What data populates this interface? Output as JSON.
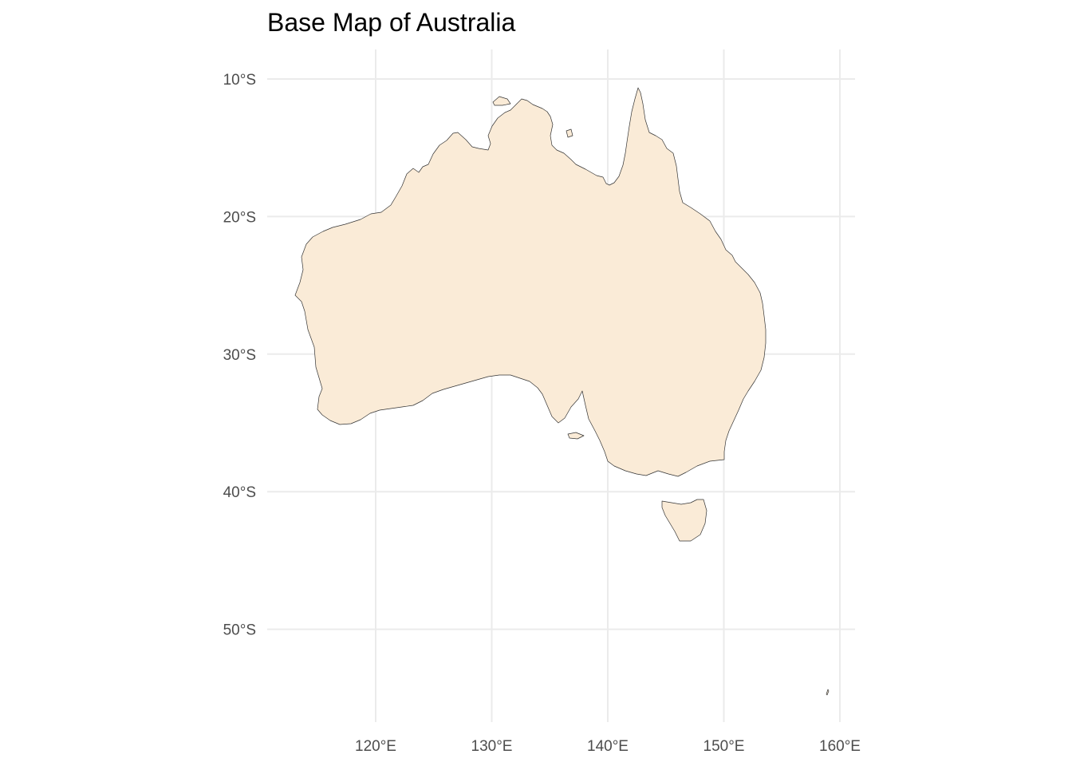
{
  "map": {
    "title": "Base Map of Australia",
    "land_fill": "#faebd7",
    "outline_color": "#333333",
    "grid_color": "#ebebeb",
    "background": "#ffffff",
    "x_ticks": [
      {
        "value": 120,
        "label": "120°E"
      },
      {
        "value": 130,
        "label": "130°E"
      },
      {
        "value": 140,
        "label": "140°E"
      },
      {
        "value": 150,
        "label": "150°E"
      },
      {
        "value": 160,
        "label": "160°E"
      }
    ],
    "y_ticks": [
      {
        "value": -10,
        "label": "10°S"
      },
      {
        "value": -20,
        "label": "20°S"
      },
      {
        "value": -30,
        "label": "30°S"
      },
      {
        "value": -40,
        "label": "40°S"
      },
      {
        "value": -50,
        "label": "50°S"
      }
    ],
    "features": [
      "mainland-australia",
      "tasmania",
      "kangaroo-island",
      "macquarie-island"
    ]
  }
}
